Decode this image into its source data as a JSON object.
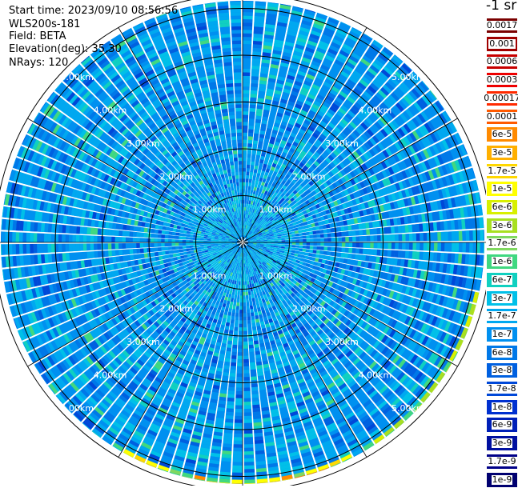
{
  "header": {
    "start_time": "Start time: 2023/09/10 08:56:56",
    "instrument": "WLS200s-181",
    "field": "Field: BETA",
    "elevation": "Elevation(deg): 35.30",
    "nrays": "NRays: 120"
  },
  "colorbar": {
    "unit_label": "-1 sr",
    "levels": [
      {
        "label": "0.0017",
        "color": "#7a0000"
      },
      {
        "label": "0.001",
        "color": "#a00000"
      },
      {
        "label": "0.0006",
        "color": "#c80000"
      },
      {
        "label": "0.0003",
        "color": "#ee0000"
      },
      {
        "label": "0.00017",
        "color": "#ff2a00"
      },
      {
        "label": "0.0001",
        "color": "#ff5a00"
      },
      {
        "label": "6e-5",
        "color": "#ff8a00"
      },
      {
        "label": "3e-5",
        "color": "#ffb000"
      },
      {
        "label": "1.7e-5",
        "color": "#ffd800"
      },
      {
        "label": "1e-5",
        "color": "#ffff00"
      },
      {
        "label": "6e-6",
        "color": "#d8f000"
      },
      {
        "label": "3e-6",
        "color": "#a8e020"
      },
      {
        "label": "1.7e-6",
        "color": "#80d860"
      },
      {
        "label": "1e-6",
        "color": "#40d880"
      },
      {
        "label": "6e-7",
        "color": "#10d0c0"
      },
      {
        "label": "3e-7",
        "color": "#00c0e8"
      },
      {
        "label": "1.7e-7",
        "color": "#00a8f0"
      },
      {
        "label": "1e-7",
        "color": "#0090f0"
      },
      {
        "label": "6e-8",
        "color": "#0078e8"
      },
      {
        "label": "3e-8",
        "color": "#0060e0"
      },
      {
        "label": "1.7e-8",
        "color": "#0048d8"
      },
      {
        "label": "1e-8",
        "color": "#0030d0"
      },
      {
        "label": "6e-9",
        "color": "#0020b8"
      },
      {
        "label": "3e-9",
        "color": "#0010a0"
      },
      {
        "label": "1.7e-9",
        "color": "#000088"
      },
      {
        "label": "1e-9",
        "color": "#000070"
      }
    ]
  },
  "chart_data": {
    "type": "heatmap",
    "projection": "polar",
    "field": "BETA",
    "elevation_deg": 35.3,
    "n_rays": 120,
    "range_rings_km": [
      1,
      2,
      3,
      4,
      5
    ],
    "ring_labels": [
      "1.00km",
      "2.00km",
      "3.00km",
      "4.00km",
      "5.00km"
    ],
    "max_range_km": 5.3,
    "spokes_deg": [
      0,
      30,
      60,
      90,
      120,
      150,
      180,
      210,
      240,
      270,
      300,
      330
    ],
    "dominant_level": "1e-7",
    "features": [
      {
        "where": "near range (<1 km)",
        "level": "3e-7"
      },
      {
        "where": "outer edge, south (5.0-5.3 km)",
        "level": "1e-5"
      },
      {
        "where": "outer edge, east-southeast",
        "level": "6e-6"
      }
    ]
  }
}
